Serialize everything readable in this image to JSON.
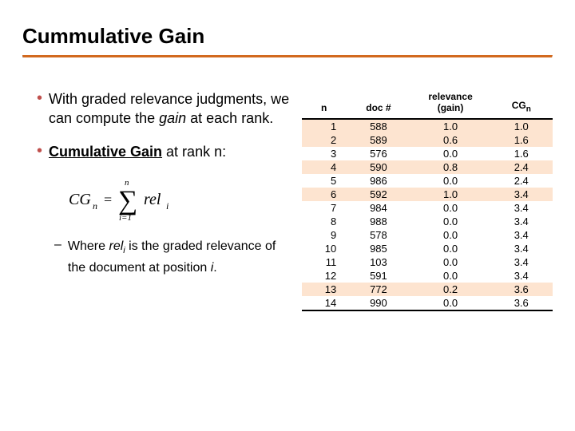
{
  "title": "Cummulative Gain",
  "bullets": {
    "b1_pre": "With graded relevance judgments, we can compute the ",
    "b1_emph": "gain",
    "b1_post": " at each rank.",
    "b2_pre": "Cumulative Gain",
    "b2_post": " at rank n:",
    "sub_pre": "Where ",
    "sub_rel": "rel",
    "sub_i": "i",
    "sub_mid": " is the graded relevance of the document at position ",
    "sub_i2": "i",
    "sub_end": "."
  },
  "formula": {
    "lhs": "CG",
    "lhs_sub": "n",
    "eq": "=",
    "sum_top": "n",
    "sum_bottom": "i=1",
    "rhs": "rel",
    "rhs_sub": "i"
  },
  "table": {
    "headers": {
      "n": "n",
      "doc": "doc #",
      "gain_top": "relevance",
      "gain_bot": "(gain)",
      "cg": "CG",
      "cg_sub": "n"
    },
    "rows": [
      {
        "n": "1",
        "doc": "588",
        "gain": "1.0",
        "cg": "1.0",
        "hl": true
      },
      {
        "n": "2",
        "doc": "589",
        "gain": "0.6",
        "cg": "1.6",
        "hl": true
      },
      {
        "n": "3",
        "doc": "576",
        "gain": "0.0",
        "cg": "1.6",
        "hl": false
      },
      {
        "n": "4",
        "doc": "590",
        "gain": "0.8",
        "cg": "2.4",
        "hl": true
      },
      {
        "n": "5",
        "doc": "986",
        "gain": "0.0",
        "cg": "2.4",
        "hl": false
      },
      {
        "n": "6",
        "doc": "592",
        "gain": "1.0",
        "cg": "3.4",
        "hl": true
      },
      {
        "n": "7",
        "doc": "984",
        "gain": "0.0",
        "cg": "3.4",
        "hl": false
      },
      {
        "n": "8",
        "doc": "988",
        "gain": "0.0",
        "cg": "3.4",
        "hl": false
      },
      {
        "n": "9",
        "doc": "578",
        "gain": "0.0",
        "cg": "3.4",
        "hl": false
      },
      {
        "n": "10",
        "doc": "985",
        "gain": "0.0",
        "cg": "3.4",
        "hl": false
      },
      {
        "n": "11",
        "doc": "103",
        "gain": "0.0",
        "cg": "3.4",
        "hl": false
      },
      {
        "n": "12",
        "doc": "591",
        "gain": "0.0",
        "cg": "3.4",
        "hl": false
      },
      {
        "n": "13",
        "doc": "772",
        "gain": "0.2",
        "cg": "3.6",
        "hl": true
      },
      {
        "n": "14",
        "doc": "990",
        "gain": "0.0",
        "cg": "3.6",
        "hl": false
      }
    ]
  },
  "style": {
    "accent_color": "#c0504d",
    "rule_color": "#b85c00",
    "highlight_color": "#fde4d0",
    "title_fontsize": 26,
    "body_fontsize": 18,
    "sub_fontsize": 16,
    "table_fontsize": 13
  }
}
